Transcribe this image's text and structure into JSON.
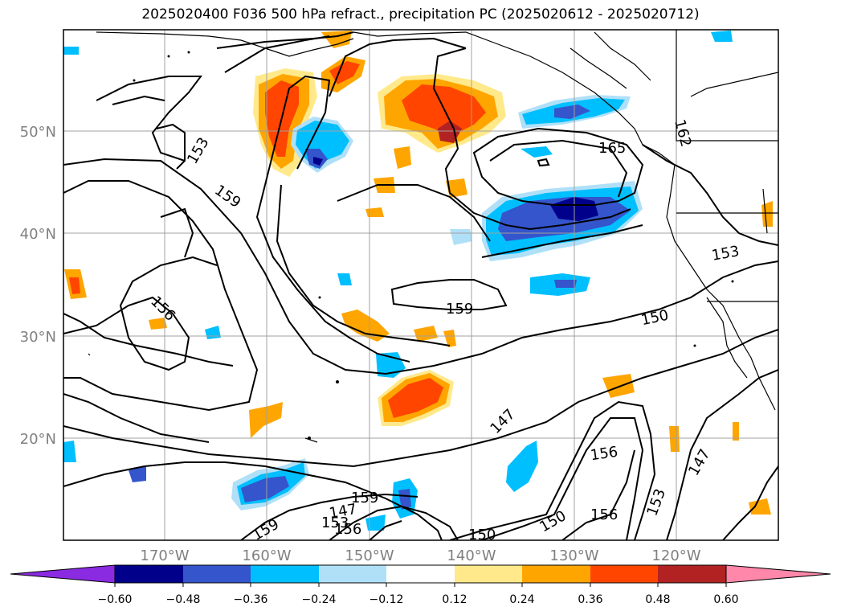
{
  "title": "2025020400 F036 500 hPa refract., precipitation PC (2025020612 - 2025020712)",
  "lat_labels": [
    "50°N",
    "40°N",
    "30°N",
    "20°N"
  ],
  "lon_labels": [
    "170°W",
    "160°W",
    "150°W",
    "140°W",
    "130°W",
    "120°W"
  ],
  "contour_labels": [
    "153",
    "159",
    "156",
    "159",
    "165",
    "162",
    "153",
    "150",
    "147",
    "156",
    "153",
    "147",
    "150",
    "156",
    "159",
    "147",
    "153",
    "156",
    "159",
    "150"
  ],
  "colorbar": {
    "ticks": [
      "−0.60",
      "−0.48",
      "−0.36",
      "−0.24",
      "−0.12",
      "0.12",
      "0.24",
      "0.36",
      "0.48",
      "0.60"
    ],
    "colors": [
      "#8a2be2",
      "#00008b",
      "#3455cc",
      "#00bfff",
      "#b0e0f8",
      "#ffffff",
      "#ffe98a",
      "#ffa500",
      "#ff4500",
      "#b22222",
      "#ff88aa"
    ]
  },
  "colors": {
    "frame": "#000000",
    "grid": "#a0a0a0",
    "coast": "#000000",
    "axis_label": "#808080"
  }
}
